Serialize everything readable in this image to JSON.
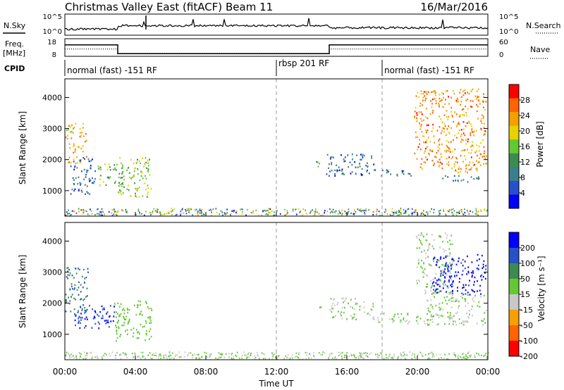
{
  "header": {
    "title": "Christmas Valley East (fitACF)",
    "beam": "Beam 11",
    "date": "16/Mar/2016"
  },
  "status_panels": {
    "nsky_label": "N.Sky",
    "nsearch_label": "N.Search",
    "count_ticks_left": [
      "10^5",
      "10^0"
    ],
    "count_ticks_right": [
      "10^5",
      "10^0"
    ],
    "freq_label_line1": "Freq.",
    "freq_label_line2": "[MHz]",
    "freq_ticks": [
      "18",
      "8"
    ],
    "nave_label": "Nave",
    "nave_ticks": [
      "60",
      "0"
    ],
    "cpid_label": "CPID",
    "cpid_segments": [
      {
        "label": "normal (fast) -151 RF",
        "start_hour": 0
      },
      {
        "label": "rbsp 201 RF",
        "start_hour": 12
      },
      {
        "label": "normal (fast) -151 RF",
        "start_hour": 18
      }
    ]
  },
  "chart_data": [
    {
      "type": "heatmap",
      "name": "power",
      "ylabel": "Slant Range [km]",
      "yticks": [
        1000,
        2000,
        3000,
        4000
      ],
      "ylim": [
        180,
        4600
      ],
      "xlim": [
        0,
        24
      ],
      "colorbar": {
        "label": "Power [dB]",
        "ticks": [
          4,
          8,
          12,
          16,
          20,
          24,
          28
        ],
        "range": [
          0,
          32
        ],
        "colors": [
          "#0000ff",
          "#2850c8",
          "#3c7f8c",
          "#3c8c50",
          "#64c832",
          "#e6d200",
          "#f5a000",
          "#ff6400",
          "#ff0000"
        ]
      },
      "echo_regions": [
        {
          "t": [
            0.0,
            1.2
          ],
          "r": [
            1900,
            3200
          ],
          "level": 22
        },
        {
          "t": [
            0.3,
            1.7
          ],
          "r": [
            900,
            2100
          ],
          "level": 7
        },
        {
          "t": [
            1.8,
            3.3
          ],
          "r": [
            1200,
            1900
          ],
          "level": 16
        },
        {
          "t": [
            3.0,
            4.9
          ],
          "r": [
            800,
            2100
          ],
          "level": 17
        },
        {
          "t": [
            14.1,
            14.5
          ],
          "r": [
            1800,
            2050
          ],
          "level": 14
        },
        {
          "t": [
            14.8,
            17.5
          ],
          "r": [
            1500,
            2200
          ],
          "level": 7
        },
        {
          "t": [
            17.0,
            19.8
          ],
          "r": [
            1500,
            1700
          ],
          "level": 8
        },
        {
          "t": [
            19.8,
            23.9
          ],
          "r": [
            1600,
            4300
          ],
          "level": 24
        },
        {
          "t": [
            21.0,
            23.5
          ],
          "r": [
            1300,
            1500
          ],
          "level": 10
        }
      ]
    },
    {
      "type": "heatmap",
      "name": "velocity",
      "ylabel": "Slant Range [km]",
      "yticks": [
        1000,
        2000,
        3000,
        4000
      ],
      "ylim": [
        180,
        4600
      ],
      "xlim": [
        0,
        24
      ],
      "colorbar": {
        "label": "Velocity [m s⁻¹]",
        "ticks": [
          200,
          100,
          50,
          15,
          -15,
          -50,
          -100,
          -200
        ],
        "range": [
          -250,
          250
        ],
        "colors": [
          "#0000ff",
          "#2850c8",
          "#3c8c50",
          "#64c832",
          "#c8c8c8",
          "#f5a000",
          "#ff6400",
          "#ff0000"
        ]
      },
      "echo_regions": [
        {
          "t": [
            0.0,
            1.3
          ],
          "r": [
            1700,
            3200
          ],
          "v": 120
        },
        {
          "t": [
            0.5,
            2.8
          ],
          "r": [
            1200,
            2000
          ],
          "v": 180
        },
        {
          "t": [
            2.8,
            4.9
          ],
          "r": [
            800,
            2100
          ],
          "v": 30
        },
        {
          "t": [
            14.2,
            14.6
          ],
          "r": [
            1800,
            2000
          ],
          "v": 0
        },
        {
          "t": [
            15.0,
            17.5
          ],
          "r": [
            1500,
            2200
          ],
          "v": 0
        },
        {
          "t": [
            17.5,
            21.0
          ],
          "r": [
            1350,
            1700
          ],
          "v": 0
        },
        {
          "t": [
            19.9,
            22.0
          ],
          "r": [
            2300,
            4300
          ],
          "v": 0
        },
        {
          "t": [
            20.8,
            23.9
          ],
          "r": [
            2300,
            3600
          ],
          "v": 200
        },
        {
          "t": [
            20.5,
            23.9
          ],
          "r": [
            1300,
            2300
          ],
          "v": 0
        }
      ]
    }
  ],
  "xaxis": {
    "label": "Time UT",
    "ticks": [
      "00:00",
      "04:00",
      "08:00",
      "12:00",
      "16:00",
      "20:00",
      "00:00"
    ],
    "tick_hours": [
      0,
      4,
      8,
      12,
      16,
      20,
      24
    ]
  },
  "frequency_trace": [
    {
      "start_hour": 0,
      "end_hour": 3.0,
      "mhz": 14.5
    },
    {
      "start_hour": 3.0,
      "end_hour": 15.0,
      "mhz": 9.5
    },
    {
      "start_hour": 15.0,
      "end_hour": 24,
      "mhz": 14.5
    }
  ],
  "nave_trace": [
    {
      "start_hour": 0,
      "end_hour": 3.0,
      "value": 25
    },
    {
      "start_hour": 3.0,
      "end_hour": 15.0,
      "value": 10
    },
    {
      "start_hour": 15.0,
      "end_hour": 24,
      "value": 25
    }
  ],
  "vertical_markers_hours": [
    12,
    18
  ]
}
